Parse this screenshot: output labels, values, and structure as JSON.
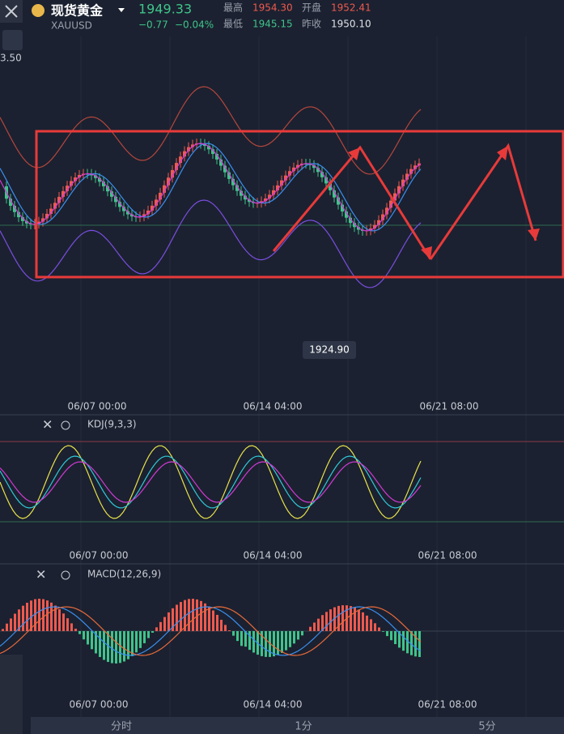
{
  "header": {
    "name": "现货黄金",
    "symbol": "XAUUSD",
    "price": "1949.33",
    "change": "−0.77",
    "change_pct": "−0.04%",
    "stats": [
      {
        "label": "最高",
        "value": "1954.30"
      },
      {
        "label": "开盘",
        "value": "1952.41"
      },
      {
        "label": "最低",
        "value": "1945.15"
      },
      {
        "label": "昨收",
        "value": "1950.10"
      }
    ]
  },
  "main": {
    "price_label": "3.50",
    "low_label": "1924.90",
    "times": [
      "06/07 00:00",
      "06/14 04:00",
      "06/21 08:00"
    ]
  },
  "kdj": {
    "title": "KDJ(9,3,3)",
    "times": [
      "06/07 00:00",
      "06/14 04:00",
      "06/21 08:00"
    ]
  },
  "macd": {
    "title": "MACD(12,26,9)",
    "times": [
      "06/07 00:00",
      "06/14 04:00",
      "06/21 08:00"
    ]
  },
  "tabs": [
    "分时",
    "1分",
    "5分"
  ]
}
